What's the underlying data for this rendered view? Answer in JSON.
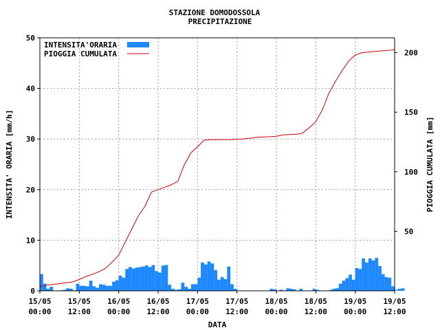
{
  "chart_data": {
    "type": "bar+line",
    "title": "STAZIONE DOMODOSSOLA",
    "subtitle": "PRECIPITAZIONE",
    "xlabel": "DATA",
    "ylabel_left": "INTENSITA' ORARIA [mm/h]",
    "ylabel_right": "PIOGGIA CUMULATA [mm]",
    "ylim_left": [
      0,
      50
    ],
    "ylim_right": [
      0,
      212.5
    ],
    "xlim_hours": [
      0,
      108
    ],
    "yticks_left": [
      "0",
      "10",
      "20",
      "30",
      "40",
      "50"
    ],
    "yticks_right": [
      "50",
      "100",
      "150",
      "200"
    ],
    "yticks_right_values": [
      50,
      100,
      150,
      200
    ],
    "xticks": [
      {
        "date": "15/05",
        "time": "00:00"
      },
      {
        "date": "15/05",
        "time": "12:00"
      },
      {
        "date": "16/05",
        "time": "00:00"
      },
      {
        "date": "16/05",
        "time": "12:00"
      },
      {
        "date": "17/05",
        "time": "00:00"
      },
      {
        "date": "17/05",
        "time": "12:00"
      },
      {
        "date": "18/05",
        "time": "00:00"
      },
      {
        "date": "18/05",
        "time": "12:00"
      },
      {
        "date": "19/05",
        "time": "00:00"
      },
      {
        "date": "19/05",
        "time": "12:00"
      }
    ],
    "grid": true,
    "legend_position": "top-left",
    "series": [
      {
        "name": "INTENSITA'ORARIA",
        "type": "bar",
        "axis": "left",
        "color": "#1e88ff",
        "values": [
          3.3,
          1.4,
          0.4,
          0.8,
          0,
          0,
          0.1,
          0.2,
          0.5,
          0.4,
          0.1,
          1.4,
          1.0,
          1.0,
          0.9,
          2.0,
          0.9,
          0.6,
          1.3,
          1.2,
          1.0,
          1.0,
          1.8,
          2.1,
          3.0,
          2.6,
          4.3,
          4.7,
          4.4,
          4.6,
          4.7,
          4.8,
          5.0,
          4.7,
          5.1,
          3.9,
          3.6,
          5.0,
          5.1,
          1.2,
          0.4,
          0.2,
          0.3,
          1.6,
          0.8,
          0.4,
          1.3,
          1.3,
          2.6,
          5.6,
          5.2,
          5.8,
          5.4,
          4.1,
          2.2,
          2.7,
          2.3,
          4.8,
          1.3,
          0.4,
          0,
          0,
          0,
          0,
          0,
          0,
          0,
          0,
          0,
          0,
          0.4,
          0.3,
          0,
          0.2,
          0,
          0.5,
          0.4,
          0.3,
          0,
          0.4,
          0,
          0,
          0,
          0.4,
          0.2,
          0,
          0,
          0,
          0.2,
          0.4,
          0.5,
          1.4,
          2.0,
          2.5,
          3.2,
          2.2,
          4.5,
          4.3,
          6.4,
          5.6,
          6.4,
          6.0,
          6.5,
          4.9,
          3.3,
          2.7,
          2.6,
          0.9,
          0.2,
          0.4,
          0.5
        ]
      },
      {
        "name": "PIOGGIA CUMULATA",
        "type": "line",
        "axis": "right",
        "color": "#cc0000",
        "x_hours": [
          0,
          2,
          4,
          6,
          8,
          10,
          12,
          14,
          16,
          18,
          20,
          22,
          24,
          26,
          28,
          30,
          32,
          34,
          36,
          38,
          40,
          42,
          44,
          46,
          48,
          50,
          52,
          54,
          56,
          58,
          60,
          62,
          64,
          66,
          68,
          70,
          72,
          74,
          76,
          78,
          80,
          82,
          84,
          86,
          88,
          90,
          92,
          94,
          96,
          98,
          100,
          102,
          104,
          106,
          108
        ],
        "values": [
          3.3,
          4.8,
          5.3,
          6.0,
          6.8,
          7.5,
          9.5,
          12.0,
          14.0,
          16.0,
          19.0,
          24.0,
          30.0,
          41.0,
          52.0,
          63.0,
          71.0,
          83.0,
          85.0,
          87.0,
          89.0,
          92.0,
          106.0,
          116.0,
          121.0,
          126.5,
          127.0,
          127.0,
          127.0,
          127.0,
          127.3,
          127.6,
          128.0,
          129.0,
          129.2,
          129.4,
          129.8,
          131.0,
          131.2,
          131.4,
          132.5,
          137.0,
          142.0,
          152.0,
          166.0,
          176.0,
          185.0,
          193.0,
          198.0,
          200.0,
          200.5,
          201.0,
          201.5,
          202.0,
          202.5
        ]
      }
    ]
  }
}
